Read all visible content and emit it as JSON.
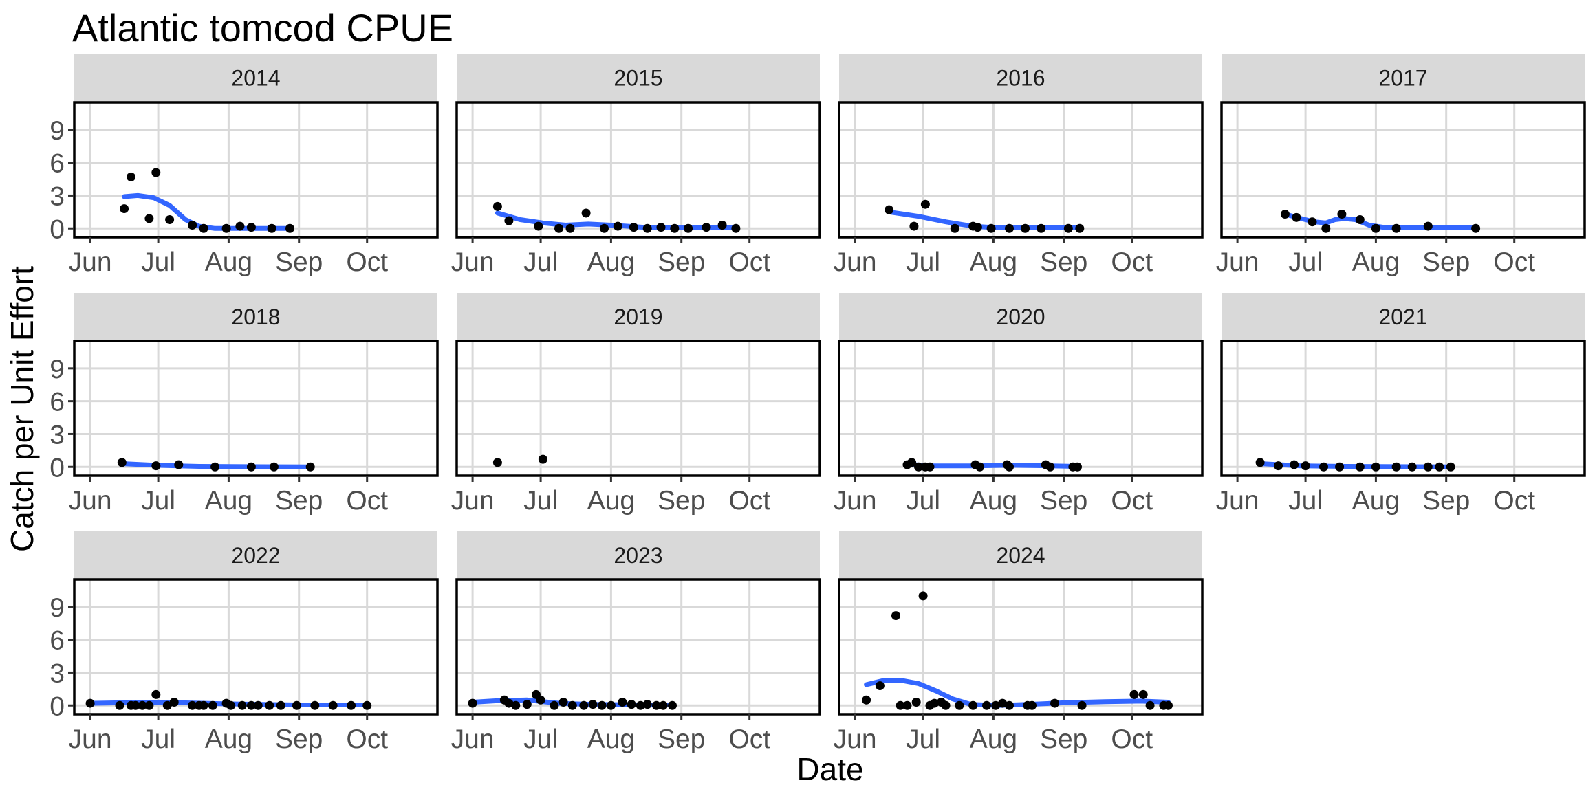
{
  "chart_data": {
    "type": "scatter",
    "title": "Atlantic tomcod CPUE",
    "xlabel": "Date",
    "ylabel": "Catch per Unit Effort",
    "facet_layout": "3 rows x 4 columns, shared axes",
    "x_unit": "day of year (not printed)",
    "xlim_day_of_year": [
      145,
      305
    ],
    "ylim": [
      -0.8,
      11.5
    ],
    "x_ticks": [
      {
        "label": "Jun",
        "day": 152
      },
      {
        "label": "Jul",
        "day": 182
      },
      {
        "label": "Aug",
        "day": 213
      },
      {
        "label": "Sep",
        "day": 244
      },
      {
        "label": "Oct",
        "day": 274
      }
    ],
    "y_ticks": [
      {
        "label": "0",
        "value": 0
      },
      {
        "label": "3",
        "value": 3
      },
      {
        "label": "6",
        "value": 6
      },
      {
        "label": "9",
        "value": 9
      }
    ],
    "grid": "major gridlines on",
    "colors": {
      "strip_fill": "#d9d9d9",
      "panel_border": "#000000",
      "grid": "#d9d9d9",
      "points": "#000000",
      "smooth_line": "#3366ff",
      "tick_text": "#4d4d4d"
    },
    "facets": [
      {
        "label": "2014",
        "points": [
          [
            167,
            1.8
          ],
          [
            170,
            4.7
          ],
          [
            178,
            0.9
          ],
          [
            181,
            5.1
          ],
          [
            187,
            0.8
          ],
          [
            197,
            0.3
          ],
          [
            202,
            0
          ],
          [
            212,
            0
          ],
          [
            218,
            0.2
          ],
          [
            223,
            0.1
          ],
          [
            232,
            0
          ],
          [
            240,
            0
          ]
        ],
        "smooth": [
          [
            167,
            2.9
          ],
          [
            173,
            3.0
          ],
          [
            180,
            2.8
          ],
          [
            187,
            2.1
          ],
          [
            194,
            0.8
          ],
          [
            200,
            0.2
          ],
          [
            207,
            0
          ],
          [
            220,
            0
          ],
          [
            240,
            0
          ]
        ]
      },
      {
        "label": "2015",
        "points": [
          [
            163,
            2.0
          ],
          [
            168,
            0.7
          ],
          [
            181,
            0.2
          ],
          [
            190,
            0
          ],
          [
            195,
            0
          ],
          [
            202,
            1.4
          ],
          [
            210,
            0
          ],
          [
            216,
            0.2
          ],
          [
            223,
            0.1
          ],
          [
            229,
            0
          ],
          [
            235,
            0.1
          ],
          [
            241,
            0
          ],
          [
            247,
            0
          ],
          [
            255,
            0.1
          ],
          [
            262,
            0.3
          ],
          [
            268,
            0
          ]
        ],
        "smooth": [
          [
            163,
            1.4
          ],
          [
            173,
            0.8
          ],
          [
            183,
            0.5
          ],
          [
            193,
            0.3
          ],
          [
            203,
            0.4
          ],
          [
            213,
            0.3
          ],
          [
            228,
            0.1
          ],
          [
            248,
            0.05
          ],
          [
            268,
            0.05
          ]
        ]
      },
      {
        "label": "2016",
        "points": [
          [
            167,
            1.7
          ],
          [
            178,
            0.2
          ],
          [
            183,
            2.2
          ],
          [
            196,
            0
          ],
          [
            204,
            0.2
          ],
          [
            206,
            0.1
          ],
          [
            212,
            0
          ],
          [
            220,
            0
          ],
          [
            227,
            0
          ],
          [
            234,
            0
          ],
          [
            246,
            0
          ],
          [
            251,
            0
          ]
        ],
        "smooth": [
          [
            167,
            1.5
          ],
          [
            180,
            1.1
          ],
          [
            192,
            0.6
          ],
          [
            204,
            0.2
          ],
          [
            216,
            0.05
          ],
          [
            251,
            0.05
          ]
        ]
      },
      {
        "label": "2017",
        "points": [
          [
            173,
            1.3
          ],
          [
            178,
            1.0
          ],
          [
            185,
            0.6
          ],
          [
            191,
            0
          ],
          [
            198,
            1.3
          ],
          [
            206,
            0.8
          ],
          [
            213,
            0
          ],
          [
            222,
            0
          ],
          [
            236,
            0.2
          ],
          [
            257,
            0
          ]
        ],
        "smooth": [
          [
            173,
            1.3
          ],
          [
            180,
            0.9
          ],
          [
            186,
            0.6
          ],
          [
            191,
            0.5
          ],
          [
            195,
            0.8
          ],
          [
            199,
            0.9
          ],
          [
            204,
            0.8
          ],
          [
            210,
            0.3
          ],
          [
            218,
            0.05
          ],
          [
            257,
            0.05
          ]
        ]
      },
      {
        "label": "2018",
        "points": [
          [
            166,
            0.4
          ],
          [
            181,
            0.1
          ],
          [
            191,
            0.2
          ],
          [
            207,
            0
          ],
          [
            223,
            0
          ],
          [
            233,
            0
          ],
          [
            249,
            0
          ]
        ],
        "smooth": [
          [
            166,
            0.3
          ],
          [
            181,
            0.15
          ],
          [
            200,
            0.05
          ],
          [
            249,
            0
          ]
        ]
      },
      {
        "label": "2019",
        "points": [
          [
            163,
            0.4
          ],
          [
            183,
            0.7
          ]
        ],
        "smooth": []
      },
      {
        "label": "2020",
        "points": [
          [
            175,
            0.2
          ],
          [
            177,
            0.4
          ],
          [
            180,
            0
          ],
          [
            183,
            0
          ],
          [
            185,
            0
          ],
          [
            205,
            0.2
          ],
          [
            207,
            0
          ],
          [
            219,
            0.2
          ],
          [
            220,
            0
          ],
          [
            236,
            0.2
          ],
          [
            238,
            0
          ],
          [
            248,
            0
          ],
          [
            250,
            0
          ]
        ],
        "smooth": [
          [
            175,
            0.25
          ],
          [
            185,
            0.1
          ],
          [
            205,
            0.1
          ],
          [
            220,
            0.15
          ],
          [
            238,
            0.1
          ],
          [
            250,
            0.05
          ]
        ]
      },
      {
        "label": "2021",
        "points": [
          [
            162,
            0.4
          ],
          [
            170,
            0.1
          ],
          [
            177,
            0.2
          ],
          [
            182,
            0.1
          ],
          [
            190,
            0
          ],
          [
            197,
            0
          ],
          [
            206,
            0
          ],
          [
            213,
            0
          ],
          [
            222,
            0
          ],
          [
            229,
            0
          ],
          [
            236,
            0
          ],
          [
            241,
            0
          ],
          [
            246,
            0
          ]
        ],
        "smooth": [
          [
            162,
            0.3
          ],
          [
            180,
            0.1
          ],
          [
            200,
            0.05
          ],
          [
            246,
            0
          ]
        ]
      },
      {
        "label": "2022",
        "points": [
          [
            152,
            0.2
          ],
          [
            165,
            0
          ],
          [
            170,
            0
          ],
          [
            172,
            0
          ],
          [
            175,
            0
          ],
          [
            178,
            0
          ],
          [
            181,
            1.0
          ],
          [
            186,
            0
          ],
          [
            189,
            0.3
          ],
          [
            197,
            0
          ],
          [
            200,
            0
          ],
          [
            202,
            0
          ],
          [
            206,
            0
          ],
          [
            212,
            0.2
          ],
          [
            214,
            0
          ],
          [
            219,
            0
          ],
          [
            223,
            0
          ],
          [
            226,
            0
          ],
          [
            231,
            0
          ],
          [
            236,
            0
          ],
          [
            243,
            0
          ],
          [
            251,
            0
          ],
          [
            259,
            0
          ],
          [
            267,
            0
          ],
          [
            274,
            0
          ]
        ],
        "smooth": [
          [
            152,
            0.2
          ],
          [
            181,
            0.3
          ],
          [
            212,
            0.15
          ],
          [
            243,
            0.05
          ],
          [
            274,
            0.05
          ]
        ]
      },
      {
        "label": "2023",
        "points": [
          [
            152,
            0.2
          ],
          [
            166,
            0.5
          ],
          [
            168,
            0.2
          ],
          [
            171,
            0
          ],
          [
            176,
            0.1
          ],
          [
            180,
            1.0
          ],
          [
            182,
            0.5
          ],
          [
            188,
            0
          ],
          [
            192,
            0.3
          ],
          [
            196,
            0
          ],
          [
            201,
            0
          ],
          [
            205,
            0.1
          ],
          [
            209,
            0
          ],
          [
            213,
            0
          ],
          [
            218,
            0.3
          ],
          [
            222,
            0.1
          ],
          [
            226,
            0
          ],
          [
            229,
            0.1
          ],
          [
            233,
            0
          ],
          [
            236,
            0
          ],
          [
            240,
            0
          ]
        ],
        "smooth": [
          [
            152,
            0.3
          ],
          [
            164,
            0.45
          ],
          [
            176,
            0.5
          ],
          [
            190,
            0.2
          ],
          [
            205,
            0.1
          ],
          [
            225,
            0.05
          ],
          [
            240,
            0.05
          ]
        ]
      },
      {
        "label": "2024",
        "points": [
          [
            157,
            0.5
          ],
          [
            163,
            1.8
          ],
          [
            170,
            8.2
          ],
          [
            172,
            0
          ],
          [
            175,
            0
          ],
          [
            179,
            0.3
          ],
          [
            182,
            10.0
          ],
          [
            185,
            0
          ],
          [
            187,
            0.2
          ],
          [
            190,
            0.3
          ],
          [
            192,
            0
          ],
          [
            198,
            0
          ],
          [
            204,
            0
          ],
          [
            210,
            0
          ],
          [
            214,
            0
          ],
          [
            217,
            0.2
          ],
          [
            220,
            0
          ],
          [
            228,
            0
          ],
          [
            230,
            0
          ],
          [
            240,
            0.2
          ],
          [
            252,
            0
          ],
          [
            275,
            1.0
          ],
          [
            279,
            1.0
          ],
          [
            282,
            0
          ],
          [
            288,
            0
          ],
          [
            290,
            0
          ]
        ],
        "smooth": [
          [
            157,
            1.9
          ],
          [
            165,
            2.3
          ],
          [
            172,
            2.3
          ],
          [
            180,
            2.0
          ],
          [
            188,
            1.3
          ],
          [
            195,
            0.6
          ],
          [
            203,
            0.1
          ],
          [
            215,
            0
          ],
          [
            228,
            0.1
          ],
          [
            245,
            0.25
          ],
          [
            262,
            0.35
          ],
          [
            278,
            0.4
          ],
          [
            290,
            0.3
          ]
        ]
      }
    ]
  }
}
